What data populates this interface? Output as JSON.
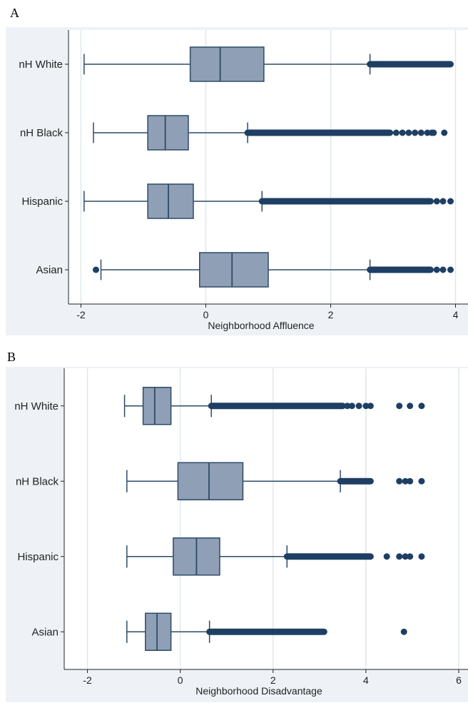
{
  "chart_data": [
    {
      "type": "box",
      "panel_label": "A",
      "xlabel": "Neighborhood Affluence",
      "ylabel": "",
      "xlim": [
        -2.2,
        4.2
      ],
      "xticks": [
        -2,
        0,
        2,
        4
      ],
      "categories": [
        "nH White",
        "nH Black",
        "Hispanic",
        "Asian"
      ],
      "colors": {
        "box_fill": "#8f9fb5",
        "box_stroke": "#2d4a68",
        "whisker": "#2d4a68",
        "outlier": "#1e3f63",
        "plot_bg": "#eef2f6",
        "grid": "#dde8ee"
      },
      "boxes": [
        {
          "name": "nH White",
          "whisker_low": -1.95,
          "q1": -0.25,
          "median": 0.23,
          "q3": 0.93,
          "whisker_high": 2.63,
          "outliers_dense": [
            2.63,
            3.92
          ],
          "outliers": []
        },
        {
          "name": "nH Black",
          "whisker_low": -1.8,
          "q1": -0.93,
          "median": -0.65,
          "q3": -0.28,
          "whisker_high": 0.67,
          "outliers_dense": [
            0.67,
            2.95
          ],
          "outliers": [
            3.05,
            3.15,
            3.25,
            3.35,
            3.45,
            3.55,
            3.62,
            3.65,
            3.82
          ]
        },
        {
          "name": "Hispanic",
          "whisker_low": -1.95,
          "q1": -0.93,
          "median": -0.6,
          "q3": -0.2,
          "whisker_high": 0.9,
          "outliers_dense": [
            0.9,
            3.6
          ],
          "outliers": [
            3.7,
            3.8,
            3.92
          ]
        },
        {
          "name": "Asian",
          "whisker_low": -1.68,
          "q1": -0.1,
          "median": 0.42,
          "q3": 1.0,
          "whisker_high": 2.63,
          "outliers_dense": [
            2.63,
            3.6
          ],
          "outliers": [
            -1.76,
            3.7,
            3.8,
            3.92
          ]
        }
      ]
    },
    {
      "type": "box",
      "panel_label": "B",
      "xlabel": "Neighborhood Disadvantage",
      "ylabel": "",
      "xlim": [
        -2.5,
        6.2
      ],
      "xticks": [
        -2,
        0,
        2,
        4,
        6
      ],
      "categories": [
        "nH White",
        "nH Black",
        "Hispanic",
        "Asian"
      ],
      "colors": {
        "box_fill": "#8f9fb5",
        "box_stroke": "#2d4a68",
        "whisker": "#2d4a68",
        "outlier": "#1e3f63",
        "plot_bg": "#eef2f6",
        "grid": "#dde8ee"
      },
      "boxes": [
        {
          "name": "nH White",
          "whisker_low": -1.2,
          "q1": -0.8,
          "median": -0.55,
          "q3": -0.2,
          "whisker_high": 0.67,
          "outliers_dense": [
            0.67,
            3.5
          ],
          "outliers": [
            3.6,
            3.7,
            3.85,
            4.0,
            4.1,
            4.72,
            4.95,
            5.2
          ]
        },
        {
          "name": "nH Black",
          "whisker_low": -1.15,
          "q1": -0.05,
          "median": 0.62,
          "q3": 1.35,
          "whisker_high": 3.45,
          "outliers_dense": [
            3.45,
            4.1
          ],
          "outliers": [
            4.72,
            4.85,
            4.95,
            5.2
          ]
        },
        {
          "name": "Hispanic",
          "whisker_low": -1.15,
          "q1": -0.15,
          "median": 0.35,
          "q3": 0.85,
          "whisker_high": 2.3,
          "outliers_dense": [
            2.3,
            4.1
          ],
          "outliers": [
            4.45,
            4.72,
            4.85,
            4.95,
            5.2
          ]
        },
        {
          "name": "Asian",
          "whisker_low": -1.15,
          "q1": -0.75,
          "median": -0.5,
          "q3": -0.2,
          "whisker_high": 0.63,
          "outliers_dense": [
            0.63,
            3.1
          ],
          "outliers": [
            4.82
          ]
        }
      ]
    }
  ]
}
